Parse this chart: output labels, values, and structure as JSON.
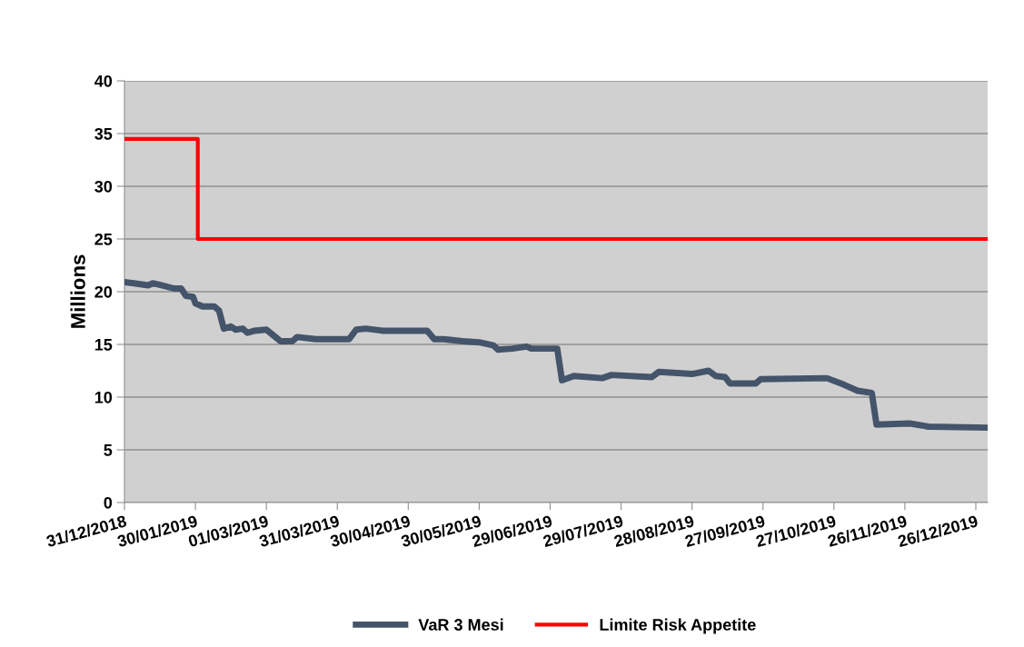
{
  "chart_data": {
    "type": "line",
    "ylabel": "Millions",
    "series": [
      {
        "name": "VaR 3 Mesi",
        "color": "#44546a",
        "x": [
          "2018-12-31",
          "2019-01-04",
          "2019-01-10",
          "2019-01-12",
          "2019-01-16",
          "2019-01-21",
          "2019-01-24",
          "2019-01-26",
          "2019-01-29",
          "2019-01-30",
          "2019-02-02",
          "2019-02-07",
          "2019-02-09",
          "2019-02-11",
          "2019-02-14",
          "2019-02-16",
          "2019-02-19",
          "2019-02-21",
          "2019-02-24",
          "2019-03-01",
          "2019-03-07",
          "2019-03-12",
          "2019-03-14",
          "2019-03-22",
          "2019-04-05",
          "2019-04-08",
          "2019-04-12",
          "2019-04-19",
          "2019-05-08",
          "2019-05-11",
          "2019-05-15",
          "2019-05-23",
          "2019-05-30",
          "2019-06-05",
          "2019-06-07",
          "2019-06-13",
          "2019-06-19",
          "2019-06-21",
          "2019-07-02",
          "2019-07-04",
          "2019-07-09",
          "2019-07-21",
          "2019-07-25",
          "2019-08-11",
          "2019-08-14",
          "2019-08-28",
          "2019-09-04",
          "2019-09-07",
          "2019-09-11",
          "2019-09-13",
          "2019-09-24",
          "2019-09-26",
          "2019-10-24",
          "2019-10-31",
          "2019-11-06",
          "2019-11-12",
          "2019-11-14",
          "2019-11-28",
          "2019-12-06",
          "2019-12-31"
        ],
        "values": [
          20.9,
          20.8,
          20.6,
          20.8,
          20.6,
          20.3,
          20.3,
          19.6,
          19.5,
          18.9,
          18.6,
          18.6,
          18.2,
          16.5,
          16.7,
          16.4,
          16.5,
          16.1,
          16.3,
          16.4,
          15.3,
          15.3,
          15.7,
          15.5,
          15.5,
          16.4,
          16.5,
          16.3,
          16.3,
          15.5,
          15.5,
          15.3,
          15.2,
          14.9,
          14.5,
          14.6,
          14.8,
          14.6,
          14.6,
          11.6,
          12.0,
          11.8,
          12.1,
          11.9,
          12.4,
          12.2,
          12.5,
          12.0,
          11.9,
          11.3,
          11.3,
          11.7,
          11.8,
          11.2,
          10.6,
          10.4,
          7.4,
          7.5,
          7.2,
          7.1
        ]
      },
      {
        "name": "Limite Risk Appetite",
        "type": "step",
        "color": "#ff0000",
        "x": [
          "2018-12-31",
          "2019-01-31",
          "2019-12-31"
        ],
        "values": [
          34.5,
          25,
          25
        ]
      }
    ],
    "xlim": [
      "2018-12-31",
      "2019-12-31"
    ],
    "xticks": [
      {
        "value": "2018-12-31",
        "label": "31/12/2018"
      },
      {
        "value": "2019-01-30",
        "label": "30/01/2019"
      },
      {
        "value": "2019-03-01",
        "label": "01/03/2019"
      },
      {
        "value": "2019-03-31",
        "label": "31/03/2019"
      },
      {
        "value": "2019-04-30",
        "label": "30/04/2019"
      },
      {
        "value": "2019-05-30",
        "label": "30/05/2019"
      },
      {
        "value": "2019-06-29",
        "label": "29/06/2019"
      },
      {
        "value": "2019-07-29",
        "label": "29/07/2019"
      },
      {
        "value": "2019-08-28",
        "label": "28/08/2019"
      },
      {
        "value": "2019-09-27",
        "label": "27/09/2019"
      },
      {
        "value": "2019-10-27",
        "label": "27/10/2019"
      },
      {
        "value": "2019-11-26",
        "label": "26/11/2019"
      },
      {
        "value": "2019-12-26",
        "label": "26/12/2019"
      }
    ],
    "ylim": [
      0,
      40
    ],
    "yticks": [
      0,
      5,
      10,
      15,
      20,
      25,
      30,
      35,
      40
    ],
    "grid": "y",
    "legend": "bottom",
    "marker": "none",
    "line_style": "solid"
  }
}
